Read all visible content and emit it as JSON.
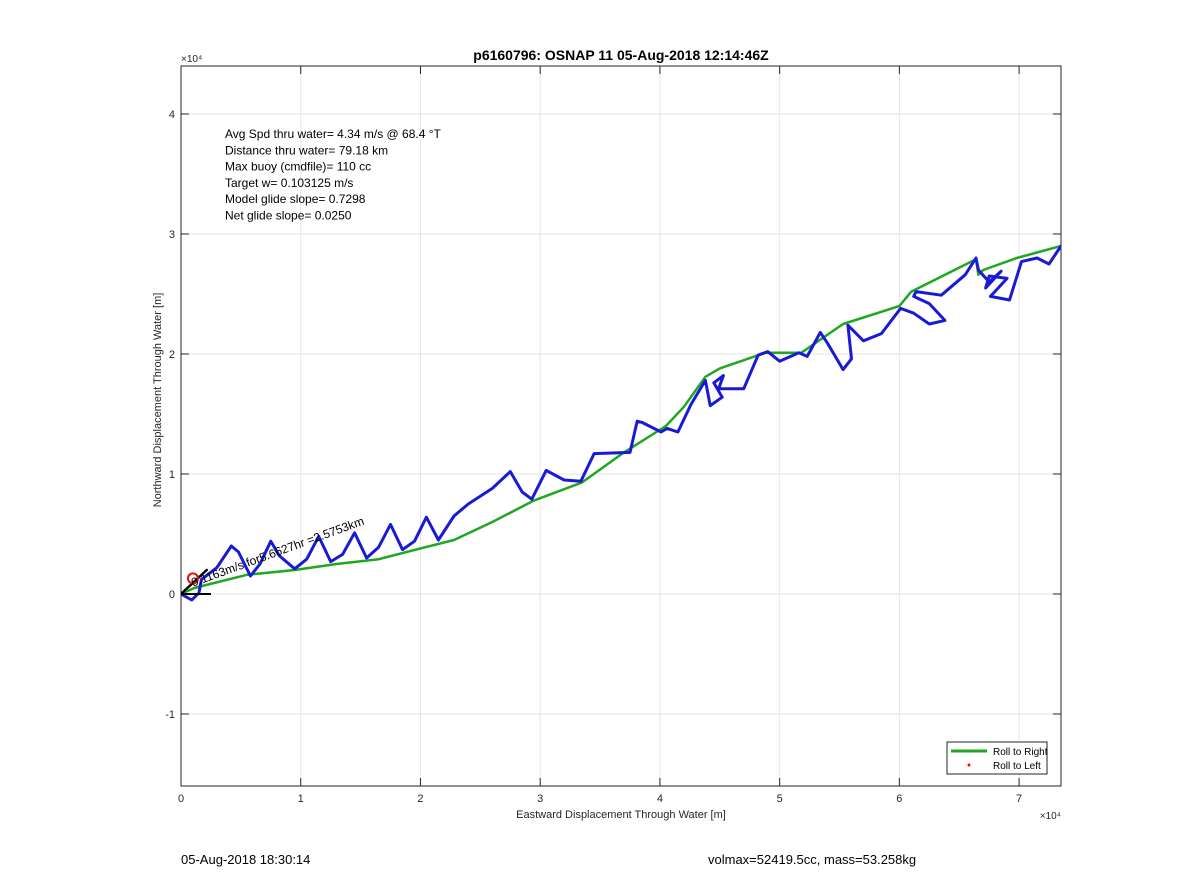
{
  "chart_data": {
    "type": "line",
    "title": "p6160796: OSNAP 11 05-Aug-2018 12:14:46Z",
    "xlabel": "Eastward Displacement Through Water [m]",
    "ylabel": "Northward Displacement Through Water [m]",
    "x_multiplier_label": "×10⁴",
    "y_multiplier_label": "×10⁴",
    "xlim": [
      0,
      73500
    ],
    "ylim": [
      -16000,
      44000
    ],
    "xticks": [
      0,
      10000,
      20000,
      30000,
      40000,
      50000,
      60000,
      70000
    ],
    "xtick_labels": [
      "0",
      "1",
      "2",
      "3",
      "4",
      "5",
      "6",
      "7"
    ],
    "yticks": [
      -10000,
      0,
      10000,
      20000,
      30000,
      40000
    ],
    "ytick_labels": [
      "-1",
      "0",
      "1",
      "2",
      "3",
      "4"
    ],
    "grid": true,
    "legend_position": "bottom-right",
    "annotations": [
      "Avg Spd thru water=  4.34 m/s @  68.4 °T",
      "Distance thru water= 79.18 km",
      "Max buoy (cmdfile)= 110 cc",
      "Target w= 0.103125 m/s",
      "Model glide slope= 0.7298",
      "Net glide slope= 0.0250"
    ],
    "current_label": "0.1163m/s for5.6627hr =2.5753km",
    "series": [
      {
        "name": "Roll to Right",
        "color": "#1fa81f",
        "x": [
          0,
          1100,
          5500,
          9500,
          13000,
          16500,
          20000,
          22800,
          26000,
          29500,
          33500,
          37000,
          40500,
          42000,
          43800,
          45000,
          48800,
          51800,
          55300,
          60000,
          61000,
          66400,
          66600,
          67000,
          69800,
          73500
        ],
        "y": [
          0,
          500,
          1600,
          2000,
          2500,
          2900,
          3800,
          4500,
          6000,
          7800,
          9300,
          11800,
          14000,
          15600,
          18100,
          18800,
          20100,
          20100,
          22500,
          24000,
          25200,
          27900,
          26600,
          27000,
          28000,
          29000
        ]
      },
      {
        "name": "Roll to Left",
        "color": "#ff0000",
        "x": [],
        "y": []
      },
      {
        "name": "",
        "color": "#1a1ad6",
        "x": [
          0,
          900,
          1500,
          1700,
          3000,
          4200,
          4800,
          5800,
          6600,
          7500,
          8200,
          9500,
          10500,
          11500,
          12500,
          13500,
          14500,
          15500,
          16500,
          17500,
          18500,
          19500,
          20500,
          21500,
          22800,
          24000,
          26000,
          27500,
          28500,
          29300,
          30500,
          32000,
          33400,
          34500,
          37500,
          38100,
          38500,
          40100,
          40600,
          41500,
          42600,
          43800,
          44200,
          45200,
          44500,
          45300,
          44900,
          47000,
          48200,
          49000,
          50000,
          51600,
          52300,
          53400,
          54000,
          55300,
          56000,
          55700,
          57000,
          58500,
          60100,
          61200,
          62500,
          63800,
          62500,
          61200,
          61400,
          63500,
          65500,
          66400,
          66600,
          67500,
          68500,
          67200,
          67500,
          69000,
          67600,
          69200,
          70200,
          71500,
          72500,
          73500
        ],
        "y": [
          0,
          -500,
          100,
          1200,
          2200,
          4000,
          3500,
          1500,
          2500,
          4400,
          3200,
          2100,
          2900,
          4800,
          2700,
          3300,
          5100,
          3000,
          3900,
          5800,
          3700,
          4400,
          6400,
          4500,
          6500,
          7500,
          8800,
          10200,
          8500,
          7900,
          10300,
          9500,
          9400,
          11700,
          11800,
          14400,
          14300,
          13500,
          13800,
          13500,
          15800,
          17800,
          15700,
          16400,
          17600,
          18200,
          17100,
          17100,
          19900,
          20200,
          19400,
          20100,
          19800,
          21800,
          20900,
          18700,
          19600,
          22400,
          21100,
          21700,
          23800,
          23400,
          22500,
          22800,
          24200,
          24800,
          25200,
          24900,
          26600,
          28000,
          27000,
          26000,
          26900,
          25500,
          26500,
          26300,
          24800,
          24500,
          27700,
          28000,
          27500,
          29000
        ]
      },
      {
        "name": "",
        "color": "#000000",
        "x": [
          0,
          2150
        ],
        "y": [
          0,
          2000
        ]
      }
    ],
    "markers": [
      {
        "shape": "circle",
        "color": "#e01010",
        "x": 1000,
        "y": 1300
      }
    ]
  },
  "footer": {
    "left": "05-Aug-2018 18:30:14",
    "right": "volmax=52419.5cc, mass=53.258kg"
  }
}
